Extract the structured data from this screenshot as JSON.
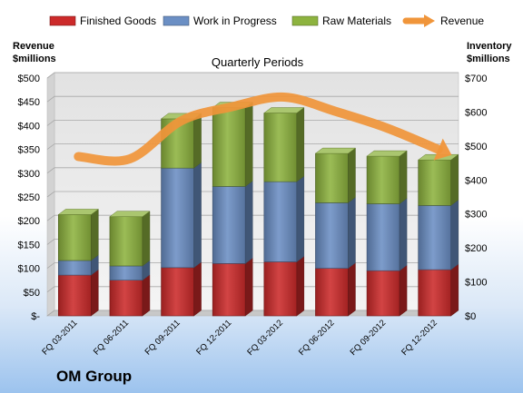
{
  "company": "OM Group",
  "left_axis_title": [
    "Revenue",
    "$millions"
  ],
  "right_axis_title": [
    "Inventory",
    "$millions"
  ],
  "chart_data": {
    "type": "bar",
    "stacked": true,
    "title": "Quarterly Periods",
    "categories": [
      "FQ 03-2011",
      "FQ 06-2011",
      "FQ 09-2011",
      "FQ 12-2011",
      "FQ 03-2012",
      "FQ 06-2012",
      "FQ 09-2012",
      "FQ 12-2012"
    ],
    "series": [
      {
        "name": "Finished Goods",
        "axis": "right",
        "color": "#cc2a2a",
        "values": [
          120,
          105,
          142,
          154,
          159,
          140,
          133,
          136
        ]
      },
      {
        "name": "Work in Progress",
        "axis": "right",
        "color": "#6b8fc4",
        "values": [
          43,
          42,
          293,
          227,
          236,
          193,
          197,
          189
        ]
      },
      {
        "name": "Raw Materials",
        "axis": "right",
        "color": "#8db33f",
        "values": [
          135,
          145,
          145,
          232,
          202,
          145,
          140,
          134
        ]
      }
    ],
    "line": {
      "name": "Revenue",
      "axis": "left",
      "color": "#f0953a",
      "values": [
        335,
        330,
        410,
        440,
        460,
        430,
        395,
        350
      ]
    },
    "left_axis": {
      "ylim": [
        0,
        500
      ],
      "ticks": [
        "$-",
        "$50",
        "$100",
        "$150",
        "$200",
        "$250",
        "$300",
        "$350",
        "$400",
        "$450",
        "$500"
      ]
    },
    "right_axis": {
      "ylim": [
        0,
        700
      ],
      "ticks": [
        "$0",
        "$100",
        "$200",
        "$300",
        "$400",
        "$500",
        "$600",
        "$700"
      ]
    },
    "grid": true,
    "legend_position": "top"
  }
}
